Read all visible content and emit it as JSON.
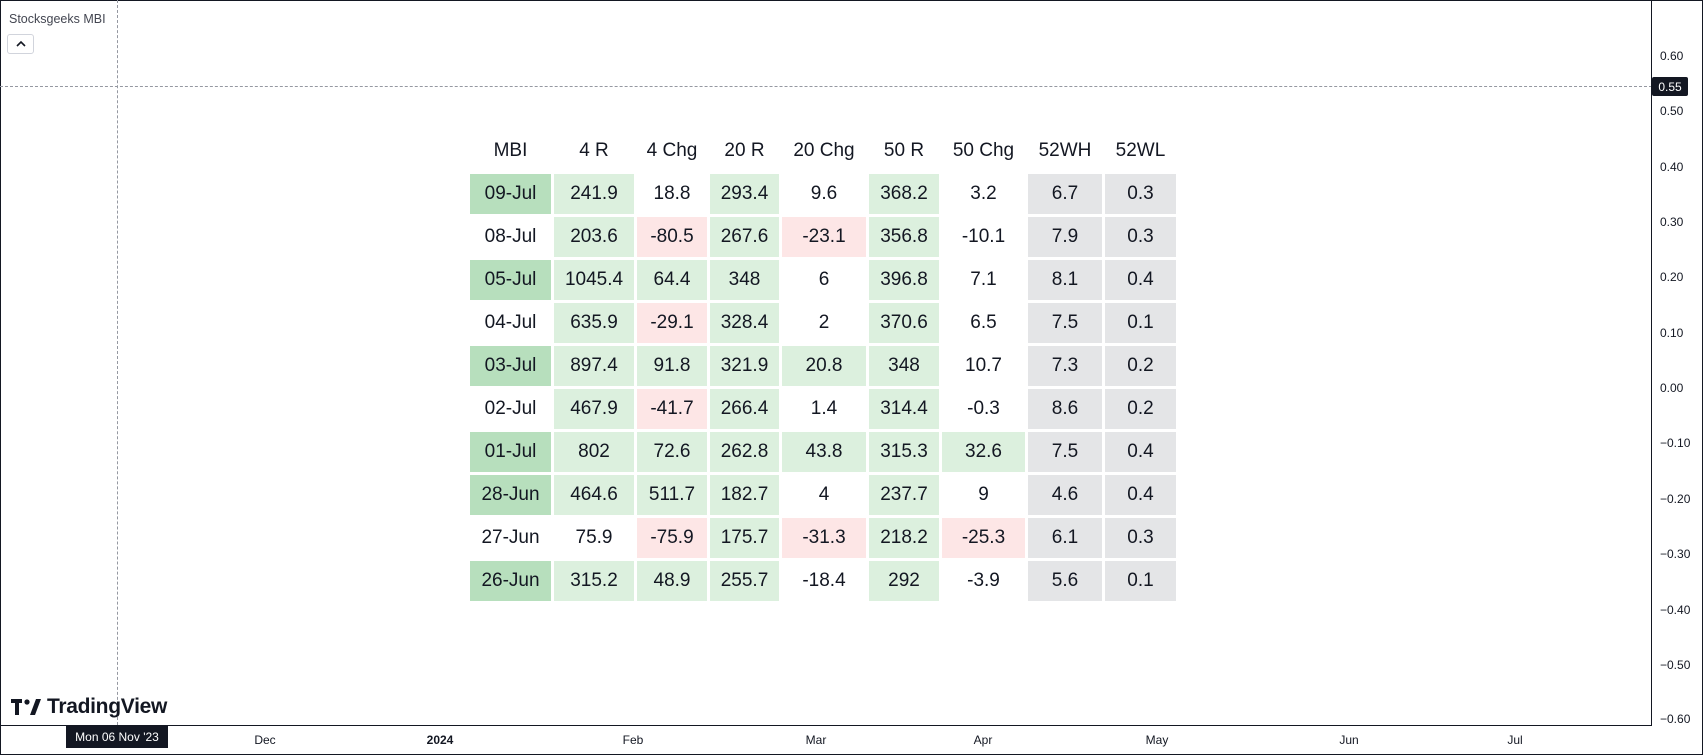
{
  "indicator": {
    "title": "Stocksgeeks MBI",
    "collapse_icon": "chevron-up-icon"
  },
  "price_axis": {
    "ticks": [
      "0.60",
      "0.50",
      "0.40",
      "0.30",
      "0.20",
      "0.10",
      "0.00",
      "−0.10",
      "−0.20",
      "−0.30",
      "−0.40",
      "−0.50",
      "−0.60"
    ],
    "crosshair_value": "0.55"
  },
  "time_axis": {
    "ticks": [
      "Dec",
      "2024",
      "Feb",
      "Mar",
      "Apr",
      "May",
      "Jun",
      "Jul"
    ],
    "crosshair_label": "Mon 06 Nov '23"
  },
  "logo": {
    "text": "TradingView"
  },
  "table": {
    "headers": [
      "MBI",
      "4 R",
      "4 Chg",
      "20 R",
      "20 Chg",
      "50 R",
      "50 Chg",
      "52WH",
      "52WL"
    ],
    "rows": [
      [
        "09-Jul",
        "241.9",
        "18.8",
        "293.4",
        "9.6",
        "368.2",
        "3.2",
        "6.7",
        "0.3"
      ],
      [
        "08-Jul",
        "203.6",
        "-80.5",
        "267.6",
        "-23.1",
        "356.8",
        "-10.1",
        "7.9",
        "0.3"
      ],
      [
        "05-Jul",
        "1045.4",
        "64.4",
        "348",
        "6",
        "396.8",
        "7.1",
        "8.1",
        "0.4"
      ],
      [
        "04-Jul",
        "635.9",
        "-29.1",
        "328.4",
        "2",
        "370.6",
        "6.5",
        "7.5",
        "0.1"
      ],
      [
        "03-Jul",
        "897.4",
        "91.8",
        "321.9",
        "20.8",
        "348",
        "10.7",
        "7.3",
        "0.2"
      ],
      [
        "02-Jul",
        "467.9",
        "-41.7",
        "266.4",
        "1.4",
        "314.4",
        "-0.3",
        "8.6",
        "0.2"
      ],
      [
        "01-Jul",
        "802",
        "72.6",
        "262.8",
        "43.8",
        "315.3",
        "32.6",
        "7.5",
        "0.4"
      ],
      [
        "28-Jun",
        "464.6",
        "511.7",
        "182.7",
        "4",
        "237.7",
        "9",
        "4.6",
        "0.4"
      ],
      [
        "27-Jun",
        "75.9",
        "-75.9",
        "175.7",
        "-31.3",
        "218.2",
        "-25.3",
        "6.1",
        "0.3"
      ],
      [
        "26-Jun",
        "315.2",
        "48.9",
        "255.7",
        "-18.4",
        "292",
        "-3.9",
        "5.6",
        "0.1"
      ]
    ],
    "row_shades": [
      [
        "dark-green",
        "light-green",
        "white",
        "light-green",
        "white",
        "light-green",
        "white",
        "gray",
        "gray"
      ],
      [
        "white",
        "light-green",
        "light-red",
        "light-green",
        "light-red",
        "light-green",
        "white",
        "gray",
        "gray"
      ],
      [
        "dark-green",
        "light-green",
        "light-green",
        "light-green",
        "white",
        "light-green",
        "white",
        "gray",
        "gray"
      ],
      [
        "white",
        "light-green",
        "light-red",
        "light-green",
        "white",
        "light-green",
        "white",
        "gray",
        "gray"
      ],
      [
        "dark-green",
        "light-green",
        "light-green",
        "light-green",
        "light-green",
        "light-green",
        "white",
        "gray",
        "gray"
      ],
      [
        "white",
        "light-green",
        "light-red",
        "light-green",
        "white",
        "light-green",
        "white",
        "gray",
        "gray"
      ],
      [
        "dark-green",
        "light-green",
        "light-green",
        "light-green",
        "light-green",
        "light-green",
        "light-green",
        "gray",
        "gray"
      ],
      [
        "dark-green",
        "light-green",
        "light-green",
        "light-green",
        "white",
        "light-green",
        "white",
        "gray",
        "gray"
      ],
      [
        "white",
        "white",
        "light-red",
        "light-green",
        "light-red",
        "light-green",
        "light-red",
        "gray",
        "gray"
      ],
      [
        "dark-green",
        "light-green",
        "light-green",
        "light-green",
        "white",
        "light-green",
        "white",
        "gray",
        "gray"
      ]
    ]
  },
  "colors": {
    "dark-green": "#b7dfbd",
    "light-green": "#dcf0de",
    "light-red": "#fde6e6",
    "gray": "#e4e5e7",
    "white": "#ffffff",
    "axis-text": "#131722",
    "crosshair-label-bg": "#131722"
  }
}
